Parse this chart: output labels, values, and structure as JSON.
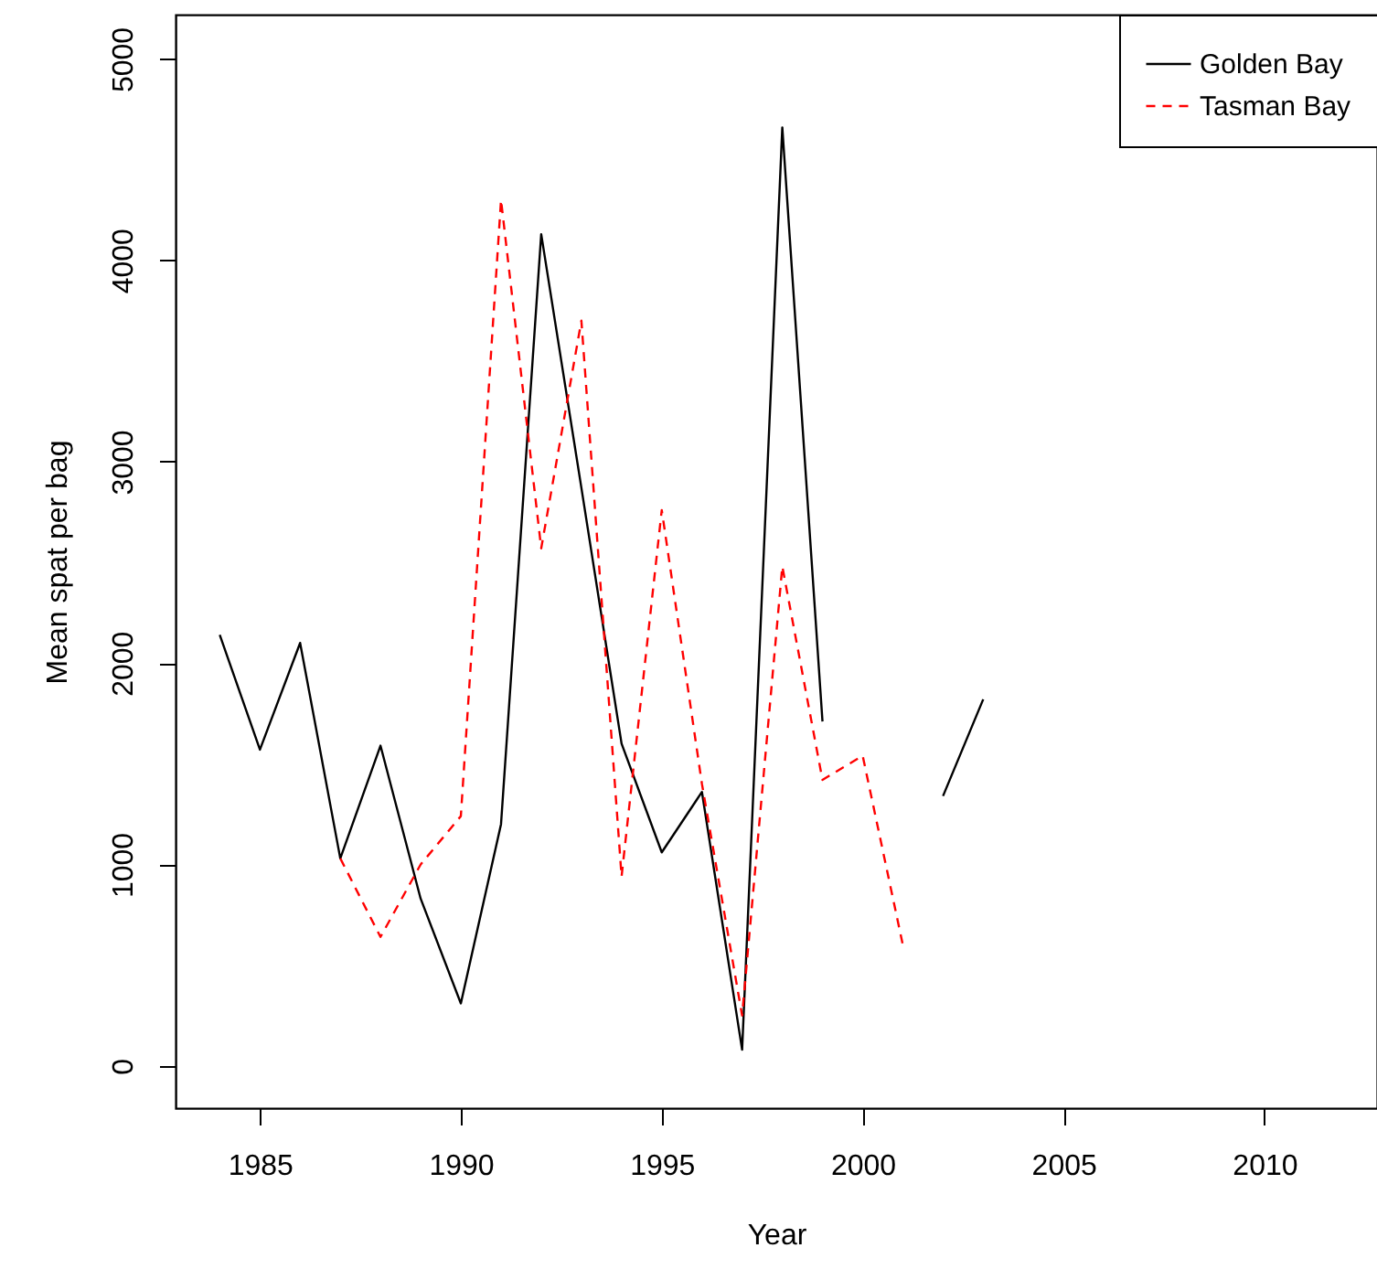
{
  "chart_data": {
    "type": "line",
    "xlabel": "Year",
    "ylabel": "Mean spat per bag",
    "x": [
      1984,
      1985,
      1986,
      1987,
      1988,
      1989,
      1990,
      1991,
      1992,
      1993,
      1994,
      1995,
      1996,
      1997,
      1998,
      1999,
      2000,
      2001,
      2002,
      2003
    ],
    "series": [
      {
        "name": "Golden Bay",
        "color": "#000000",
        "line_style": "solid",
        "values": [
          2140,
          1570,
          2100,
          1030,
          1590,
          830,
          310,
          1200,
          4130,
          2870,
          1600,
          1060,
          1360,
          80,
          4660,
          1710,
          null,
          null,
          1340,
          1820
        ]
      },
      {
        "name": "Tasman Bay",
        "color": "#ff0000",
        "line_style": "dashed",
        "values": [
          null,
          null,
          null,
          1030,
          640,
          1000,
          1240,
          4300,
          2570,
          3700,
          940,
          2760,
          1400,
          250,
          2480,
          1420,
          1540,
          600,
          null,
          null
        ]
      }
    ],
    "xlim": [
      1982.9,
      2012.8
    ],
    "ylim": [
      -210,
      5220
    ],
    "xticks": [
      1985,
      1990,
      1995,
      2000,
      2005,
      2010
    ],
    "yticks": [
      0,
      1000,
      2000,
      3000,
      4000,
      5000
    ],
    "grid": false,
    "legend": "top right",
    "marker": "none"
  }
}
